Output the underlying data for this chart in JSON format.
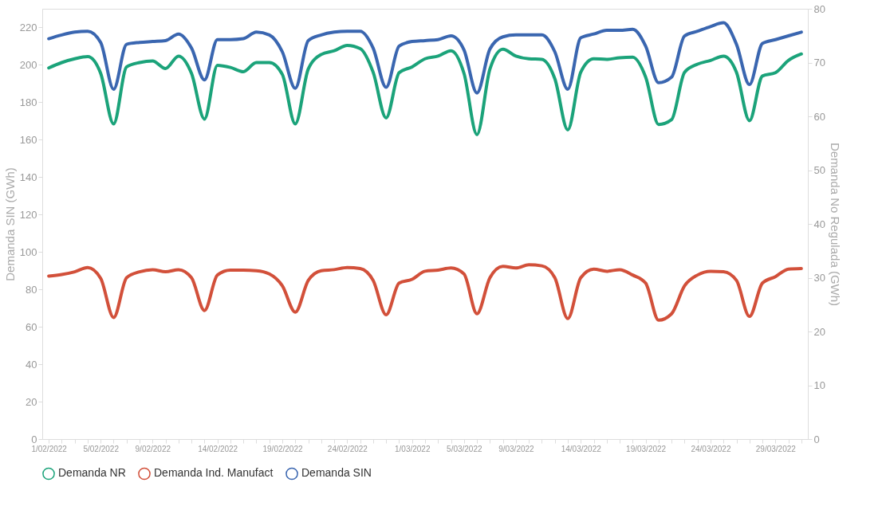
{
  "chart_data": {
    "type": "line",
    "categories": [
      "1/02/2022",
      null,
      null,
      null,
      "5/02/2022",
      null,
      null,
      null,
      "9/02/2022",
      null,
      null,
      null,
      null,
      "14/02/2022",
      null,
      null,
      null,
      null,
      "19/02/2022",
      null,
      null,
      null,
      null,
      "24/02/2022",
      null,
      null,
      null,
      null,
      "1/03/2022",
      null,
      null,
      null,
      "5/03/2022",
      null,
      null,
      null,
      "9/03/2022",
      null,
      null,
      null,
      null,
      "14/03/2022",
      null,
      null,
      null,
      null,
      "19/03/2022",
      null,
      null,
      null,
      null,
      "24/03/2022",
      null,
      null,
      null,
      null,
      "29/03/2022",
      null,
      null
    ],
    "ylabel": "Demanda SIN (GWh)",
    "y2label": "Demanda No Regulada (GWh)",
    "ylim": [
      0,
      230
    ],
    "yticks": [
      0,
      20,
      40,
      60,
      80,
      100,
      120,
      140,
      160,
      180,
      200,
      220
    ],
    "y2lim": [
      0,
      80
    ],
    "y2ticks": [
      0,
      10,
      20,
      30,
      40,
      50,
      60,
      70,
      80
    ],
    "grid": false,
    "legend": "bottom",
    "marker": "none",
    "line_style": "solid",
    "series": [
      {
        "name": "Demanda NR",
        "color": "#1ba37a",
        "axis": "y2",
        "values": [
          69.0,
          70.0,
          70.7,
          71.1,
          68.0,
          58.6,
          69.2,
          70.0,
          70.3,
          68.9,
          71.2,
          68.0,
          59.5,
          69.5,
          69.1,
          68.3,
          70.0,
          70.0,
          67.8,
          58.6,
          68.8,
          71.5,
          72.2,
          73.2,
          72.6,
          68.2,
          59.7,
          68.1,
          69.2,
          70.7,
          71.2,
          72.2,
          68.0,
          56.6,
          68.8,
          72.5,
          71.2,
          70.7,
          70.6,
          67.0,
          57.5,
          68.2,
          70.7,
          70.6,
          70.9,
          71.0,
          67.3,
          58.5,
          59.4,
          68.2,
          69.7,
          70.4,
          71.2,
          68.2,
          59.2,
          67.5,
          68.1,
          70.4,
          71.6
        ]
      },
      {
        "name": "Demanda Ind. Manufact",
        "color": "#d2503a",
        "axis": "y2",
        "values": [
          30.3,
          30.6,
          31.1,
          31.9,
          29.9,
          22.6,
          30.0,
          31.1,
          31.5,
          31.1,
          31.5,
          30.0,
          23.9,
          30.5,
          31.4,
          31.4,
          31.3,
          30.7,
          28.5,
          23.6,
          29.5,
          31.3,
          31.5,
          31.9,
          31.7,
          29.5,
          23.1,
          29.0,
          29.7,
          31.2,
          31.4,
          31.8,
          30.7,
          23.3,
          30.0,
          32.1,
          31.8,
          32.4,
          32.2,
          30.0,
          22.4,
          30.0,
          31.6,
          31.2,
          31.5,
          30.5,
          29.0,
          22.1,
          23.3,
          28.5,
          30.5,
          31.2,
          31.1,
          29.5,
          22.8,
          29.0,
          30.2,
          31.6,
          31.7
        ]
      },
      {
        "name": "Demanda SIN",
        "color": "#3a66b0",
        "axis": "y",
        "values": [
          214,
          216,
          217.5,
          218,
          212,
          187,
          211,
          212,
          212.5,
          213,
          216.5,
          209,
          192,
          213.5,
          213.5,
          214,
          217.5,
          216,
          207,
          187.5,
          213,
          216,
          217.5,
          218,
          218,
          209,
          188,
          210,
          212.5,
          213,
          213.5,
          215.5,
          208,
          185,
          208.5,
          215,
          216,
          216,
          216,
          207,
          187,
          214.5,
          216.5,
          218.5,
          218.5,
          219,
          210,
          190.5,
          193.5,
          215.5,
          218,
          220.5,
          222.5,
          211,
          189.5,
          211.5,
          213.5,
          215.5,
          217.5
        ]
      }
    ]
  }
}
